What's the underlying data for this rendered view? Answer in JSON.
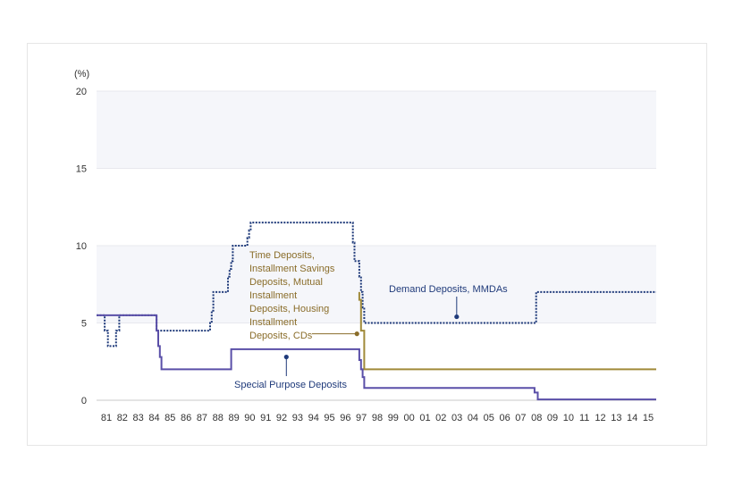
{
  "chart_data": {
    "type": "line",
    "ylabel": "(%)",
    "ylim": [
      0,
      20
    ],
    "y_ticks": [
      "0",
      "5",
      "10",
      "15",
      "20"
    ],
    "x_ticks": [
      "81",
      "82",
      "83",
      "84",
      "85",
      "86",
      "87",
      "88",
      "89",
      "90",
      "91",
      "92",
      "93",
      "94",
      "95",
      "96",
      "97",
      "98",
      "99",
      "00",
      "01",
      "02",
      "03",
      "04",
      "05",
      "06",
      "07",
      "08",
      "09",
      "10",
      "11",
      "12",
      "13",
      "14",
      "15"
    ],
    "xlim": [
      1980.5,
      2015.0
    ],
    "grid": "horizontal bands",
    "series": [
      {
        "name": "Demand Deposits, MMDAs",
        "color": "#1f3a7a",
        "style": "dotted",
        "points": [
          [
            1980.5,
            5.5
          ],
          [
            1981.0,
            5.5
          ],
          [
            1981.0,
            4.5
          ],
          [
            1981.2,
            4.5
          ],
          [
            1981.2,
            3.5
          ],
          [
            1981.7,
            3.5
          ],
          [
            1981.7,
            4.5
          ],
          [
            1981.9,
            4.5
          ],
          [
            1981.9,
            5.5
          ],
          [
            1984.2,
            5.5
          ],
          [
            1984.2,
            4.5
          ],
          [
            1984.4,
            4.5
          ],
          [
            1987.5,
            4.5
          ],
          [
            1987.5,
            5.0
          ],
          [
            1987.6,
            5.0
          ],
          [
            1987.6,
            5.8
          ],
          [
            1987.7,
            5.8
          ],
          [
            1987.7,
            7.0
          ],
          [
            1988.6,
            7.0
          ],
          [
            1988.6,
            8.0
          ],
          [
            1988.7,
            8.0
          ],
          [
            1988.7,
            8.5
          ],
          [
            1988.8,
            8.5
          ],
          [
            1988.8,
            9.0
          ],
          [
            1988.9,
            9.0
          ],
          [
            1988.9,
            10.0
          ],
          [
            1989.8,
            10.0
          ],
          [
            1989.8,
            10.5
          ],
          [
            1989.9,
            10.5
          ],
          [
            1989.9,
            11.0
          ],
          [
            1990.0,
            11.0
          ],
          [
            1990.0,
            11.5
          ],
          [
            1996.3,
            11.5
          ],
          [
            1996.3,
            10.2
          ],
          [
            1996.4,
            10.2
          ],
          [
            1996.4,
            9.0
          ],
          [
            1996.7,
            9.0
          ],
          [
            1996.7,
            8.0
          ],
          [
            1996.8,
            8.0
          ],
          [
            1996.8,
            7.0
          ],
          [
            1996.9,
            7.0
          ],
          [
            1996.9,
            6.0
          ],
          [
            1997.0,
            6.0
          ],
          [
            1997.0,
            5.0
          ],
          [
            2007.6,
            5.0
          ],
          [
            2007.6,
            7.0
          ],
          [
            2015.0,
            7.0
          ]
        ]
      },
      {
        "name": "Time Deposits, Installment Savings Deposits, Mutual Installment Deposits, Housing Installment Deposits, CDs",
        "color": "#a08a3a",
        "style": "solid",
        "points": [
          [
            1996.7,
            7.0
          ],
          [
            1996.7,
            6.5
          ],
          [
            1996.8,
            6.5
          ],
          [
            1996.8,
            4.5
          ],
          [
            1997.0,
            4.5
          ],
          [
            1997.0,
            2.0
          ],
          [
            2015.0,
            2.0
          ]
        ]
      },
      {
        "name": "Special Purpose Deposits",
        "color": "#5a4fa8",
        "style": "solid",
        "points": [
          [
            1980.5,
            5.5
          ],
          [
            1984.2,
            5.5
          ],
          [
            1984.2,
            4.5
          ],
          [
            1984.3,
            4.5
          ],
          [
            1984.3,
            3.5
          ],
          [
            1984.4,
            3.5
          ],
          [
            1984.4,
            2.8
          ],
          [
            1984.5,
            2.8
          ],
          [
            1984.5,
            2.0
          ],
          [
            1988.8,
            2.0
          ],
          [
            1988.8,
            3.3
          ],
          [
            1996.7,
            3.3
          ],
          [
            1996.7,
            2.6
          ],
          [
            1996.8,
            2.6
          ],
          [
            1996.8,
            2.0
          ],
          [
            1996.9,
            2.0
          ],
          [
            1996.9,
            1.5
          ],
          [
            1997.0,
            1.5
          ],
          [
            1997.0,
            0.8
          ],
          [
            2007.5,
            0.8
          ],
          [
            2007.5,
            0.5
          ],
          [
            2007.7,
            0.5
          ],
          [
            2007.7,
            0.05
          ],
          [
            2015.0,
            0.05
          ]
        ]
      }
    ],
    "annotations": [
      {
        "lines": [
          "Time Deposits,",
          "Installment Savings",
          "Deposits, Mutual",
          "Installment",
          "Deposits, Housing",
          "Installment",
          "Deposits, CDs"
        ],
        "color": "#8a6d2a",
        "marker": [
          1996.55,
          4.3
        ]
      },
      {
        "lines": [
          "Demand Deposits, MMDAs"
        ],
        "color": "#1f3a7a",
        "marker": [
          2002.7,
          5.4
        ]
      },
      {
        "lines": [
          "Special Purpose Deposits"
        ],
        "color": "#1f3a7a",
        "marker": [
          1992.2,
          2.8
        ]
      }
    ]
  }
}
